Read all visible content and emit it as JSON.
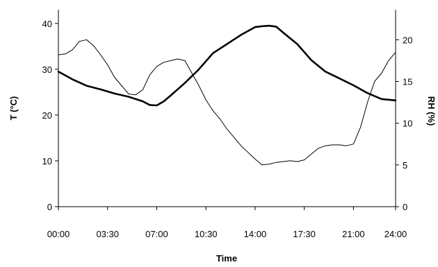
{
  "chart_data": {
    "type": "line",
    "title": "",
    "xlabel": "Time",
    "ylabel_left": "T (°C)",
    "ylabel_right": "RH (%)",
    "x_unit": "hours",
    "x_tick_labels": [
      "00:00",
      "03:30",
      "07:00",
      "10:30",
      "14:00",
      "17:30",
      "21:00",
      "24:00"
    ],
    "x_ticks": [
      0,
      3.5,
      7,
      10.5,
      14,
      17.5,
      21,
      24
    ],
    "xlim": [
      0,
      24
    ],
    "ylim_left": [
      0,
      43
    ],
    "yticks_left": [
      0,
      10,
      20,
      30,
      40
    ],
    "ylim_right": [
      0,
      23.6
    ],
    "yticks_right": [
      0,
      5,
      10,
      15,
      20
    ],
    "grid": false,
    "legend": "none",
    "series": [
      {
        "axis": "left",
        "color": "#000000",
        "line": "thick",
        "x": [
          0,
          1,
          2,
          3,
          4,
          5,
          6,
          6.5,
          7,
          7.5,
          8,
          9,
          10,
          11,
          12,
          13,
          14,
          14.5,
          15,
          15.5,
          16,
          17,
          18,
          19,
          20,
          21,
          22,
          23,
          24
        ],
        "y": [
          29.5,
          27.8,
          26.4,
          25.6,
          24.7,
          24.0,
          23.0,
          22.2,
          22.1,
          23.0,
          24.3,
          27.0,
          30.0,
          33.5,
          35.5,
          37.5,
          39.2,
          39.4,
          39.5,
          39.3,
          38.0,
          35.5,
          32.0,
          29.5,
          28.0,
          26.5,
          24.8,
          23.5,
          23.2
        ]
      },
      {
        "axis": "right",
        "color": "#000000",
        "line": "thin",
        "x": [
          0,
          0.5,
          1,
          1.5,
          2,
          2.5,
          3,
          3.5,
          4,
          4.5,
          5,
          5.5,
          6,
          6.5,
          7,
          7.5,
          8,
          8.5,
          9,
          9.5,
          10,
          10.5,
          11,
          11.5,
          12,
          12.5,
          13,
          13.5,
          14,
          14.5,
          15,
          15.5,
          16,
          16.5,
          17,
          17.5,
          18,
          18.5,
          19,
          19.5,
          20,
          20.5,
          21,
          21.5,
          22,
          22.5,
          23,
          23.5,
          24
        ],
        "y": [
          18.2,
          18.3,
          18.8,
          19.8,
          20.0,
          19.3,
          18.2,
          17.0,
          15.5,
          14.5,
          13.5,
          13.4,
          14.0,
          15.8,
          16.8,
          17.3,
          17.5,
          17.7,
          17.5,
          16.0,
          14.5,
          12.8,
          11.5,
          10.5,
          9.3,
          8.3,
          7.3,
          6.5,
          5.7,
          5.0,
          5.1,
          5.3,
          5.4,
          5.5,
          5.4,
          5.6,
          6.3,
          7.0,
          7.3,
          7.4,
          7.4,
          7.3,
          7.5,
          9.5,
          12.5,
          15.0,
          16.0,
          17.5,
          18.5
        ]
      }
    ]
  }
}
